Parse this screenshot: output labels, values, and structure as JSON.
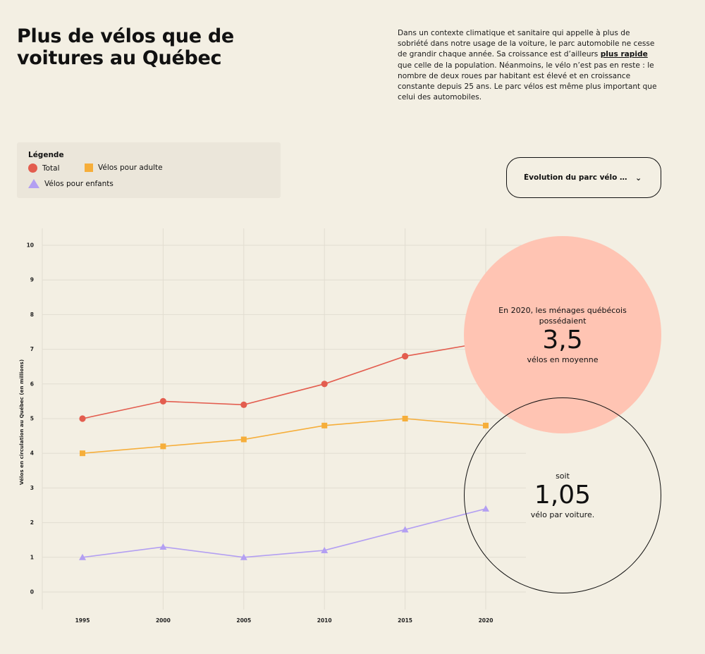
{
  "header": {
    "title": "Plus de vélos que de voitures au Québec",
    "intro_before": "Dans un contexte climatique et sanitaire qui appelle à plus de sobriété dans notre usage de la voiture, le parc automobile ne cesse de grandir chaque année. Sa croissance est d’ailleurs ",
    "intro_link": "plus rapide",
    "intro_after": " que celle de la population. Néanmoins, le vélo n’est pas en reste : le nombre de deux roues par habitant est élevé et en croissance constante depuis 25 ans. Le parc vélos est même plus important que celui des automobiles."
  },
  "legend": {
    "title": "Légende",
    "items": [
      {
        "label": "Total",
        "symbol": "circle",
        "color": "#e35d4f"
      },
      {
        "label": "Vélos pour adulte",
        "symbol": "square",
        "color": "#f6ae3a"
      },
      {
        "label": "Vélos pour enfants",
        "symbol": "triangle",
        "color": "#b39ff2"
      }
    ]
  },
  "selector": {
    "label": "Évolution du parc vélo qu...",
    "icon": "chevron-down-icon"
  },
  "chart_data": {
    "type": "line",
    "x": [
      1995,
      2000,
      2005,
      2010,
      2015,
      2020
    ],
    "ylabel": "Vélos en circulation au Québec (en millions)",
    "xlabel": "",
    "ylim": [
      0,
      10
    ],
    "yticks": [
      0,
      1,
      2,
      3,
      4,
      5,
      6,
      7,
      8,
      9,
      10
    ],
    "grid": true,
    "series": [
      {
        "name": "Total",
        "marker": "circle",
        "color": "#e35d4f",
        "values": [
          5.0,
          5.5,
          5.4,
          6.0,
          6.8,
          7.2
        ]
      },
      {
        "name": "Vélos pour adulte",
        "marker": "square",
        "color": "#f6ae3a",
        "values": [
          4.0,
          4.2,
          4.4,
          4.8,
          5.0,
          4.8
        ]
      },
      {
        "name": "Vélos pour enfants",
        "marker": "triangle",
        "color": "#b39ff2",
        "values": [
          1.0,
          1.3,
          1.0,
          1.2,
          1.8,
          2.4
        ]
      }
    ]
  },
  "callouts": {
    "avg": {
      "pre": "En 2020, les ménages québécois possédaient",
      "value": "3,5",
      "post": "vélos en moyenne",
      "color": "#ffc4b3"
    },
    "ratio": {
      "pre": "soit",
      "value": "1,05",
      "post": "vélo par voiture."
    }
  }
}
